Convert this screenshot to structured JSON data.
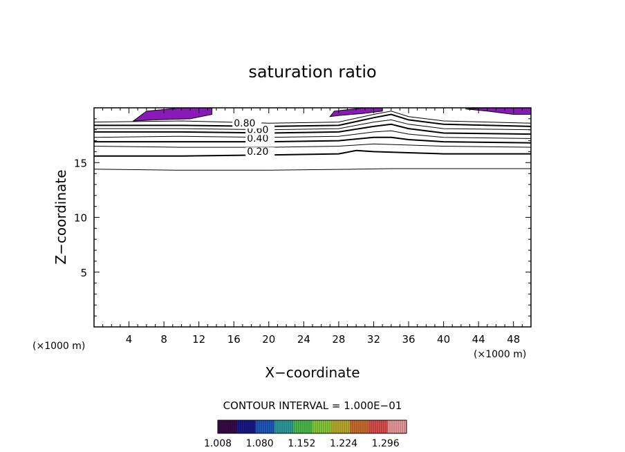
{
  "chart_data": {
    "type": "contour",
    "title": "saturation ratio",
    "xlabel": "X−coordinate",
    "ylabel": "Z−coordinate",
    "x_unit_label": "(×1000 m)",
    "z_unit_label": "(×1000 m)",
    "xlim": [
      0,
      50
    ],
    "ylim": [
      0,
      20
    ],
    "x_ticks": [
      4,
      8,
      12,
      16,
      20,
      24,
      28,
      32,
      36,
      40,
      44,
      48
    ],
    "y_ticks": [
      5,
      10,
      15
    ],
    "contour_interval_text": "CONTOUR INTERVAL = 1.000E−01",
    "contour_labels": [
      {
        "text": "0.20",
        "x": 17.5,
        "z": 15.7
      },
      {
        "text": "0.40",
        "x": 17.5,
        "z": 16.9
      },
      {
        "text": "0.60",
        "x": 17.5,
        "z": 17.7
      },
      {
        "text": "0.80",
        "x": 16.0,
        "z": 18.3
      }
    ],
    "contour_lines": [
      {
        "level": 0.1,
        "bold": false,
        "x": [
          0,
          10,
          20,
          30,
          34,
          40,
          50
        ],
        "z": [
          14.4,
          14.3,
          14.3,
          14.4,
          14.45,
          14.45,
          14.45
        ]
      },
      {
        "level": 0.2,
        "bold": true,
        "x": [
          0,
          10,
          20,
          28,
          30,
          32,
          36,
          40,
          45,
          50
        ],
        "z": [
          15.6,
          15.6,
          15.7,
          15.8,
          16.1,
          16.0,
          15.9,
          15.8,
          15.8,
          15.8
        ]
      },
      {
        "level": 0.3,
        "bold": false,
        "x": [
          0,
          10,
          20,
          28,
          32,
          36,
          40,
          50
        ],
        "z": [
          16.5,
          16.4,
          16.4,
          16.5,
          16.7,
          16.6,
          16.5,
          16.4
        ]
      },
      {
        "level": 0.4,
        "bold": true,
        "x": [
          0,
          10,
          20,
          28,
          32,
          34,
          36,
          40,
          50
        ],
        "z": [
          16.9,
          16.9,
          16.9,
          17.0,
          17.3,
          17.3,
          17.1,
          16.9,
          16.8
        ]
      },
      {
        "level": 0.5,
        "bold": false,
        "x": [
          0,
          10,
          20,
          28,
          32,
          34,
          36,
          40,
          50
        ],
        "z": [
          17.3,
          17.4,
          17.3,
          17.4,
          17.8,
          17.9,
          17.6,
          17.3,
          17.2
        ]
      },
      {
        "level": 0.6,
        "bold": true,
        "x": [
          0,
          10,
          20,
          28,
          32,
          34,
          36,
          40,
          50
        ],
        "z": [
          17.8,
          17.8,
          17.7,
          17.8,
          18.3,
          18.5,
          18.1,
          17.7,
          17.6
        ]
      },
      {
        "level": 0.7,
        "bold": false,
        "x": [
          0,
          10,
          20,
          28,
          32,
          34,
          36,
          40,
          50
        ],
        "z": [
          18.1,
          18.1,
          18.0,
          18.1,
          18.7,
          18.9,
          18.5,
          18.1,
          18.0
        ]
      },
      {
        "level": 0.8,
        "bold": true,
        "x": [
          0,
          10,
          20,
          28,
          32,
          34,
          36,
          40,
          50
        ],
        "z": [
          18.4,
          18.4,
          18.3,
          18.4,
          19.1,
          19.4,
          18.9,
          18.5,
          18.3
        ]
      },
      {
        "level": 0.9,
        "bold": false,
        "x": [
          0,
          10,
          20,
          28,
          32,
          34,
          36,
          40,
          50
        ],
        "z": [
          18.7,
          18.8,
          18.6,
          18.7,
          19.4,
          19.7,
          19.2,
          18.8,
          18.6
        ]
      }
    ],
    "supersaturated_regions": [
      {
        "color": "#8a1ab8",
        "x": [
          4.5,
          6,
          10,
          13.5,
          13.5,
          11,
          7,
          4.5
        ],
        "z": [
          18.8,
          19.7,
          20,
          20,
          19.4,
          19.0,
          18.9,
          18.8
        ]
      },
      {
        "color": "#8a1ab8",
        "x": [
          27,
          27.5,
          31,
          33,
          33,
          31,
          28,
          27
        ],
        "z": [
          19.2,
          19.7,
          20,
          20,
          19.7,
          19.5,
          19.3,
          19.2
        ]
      },
      {
        "color": "#8a1ab8",
        "x": [
          42.5,
          45,
          48,
          50,
          50,
          48,
          45,
          42.5
        ],
        "z": [
          19.9,
          19.7,
          19.4,
          19.4,
          20,
          20,
          20,
          19.9
        ]
      }
    ],
    "colorbar": {
      "range": [
        1.008,
        1.332
      ],
      "tick_labels": [
        "1.008",
        "1.080",
        "1.152",
        "1.224",
        "1.296"
      ],
      "tick_values": [
        1.008,
        1.08,
        1.152,
        1.224,
        1.296
      ],
      "colors": [
        "#3b0a4a",
        "#1a1a8a",
        "#1e5ac0",
        "#2fa0a0",
        "#4fc04f",
        "#8ad03a",
        "#c0b030",
        "#d07030",
        "#e05050",
        "#f0a0a0"
      ]
    }
  }
}
